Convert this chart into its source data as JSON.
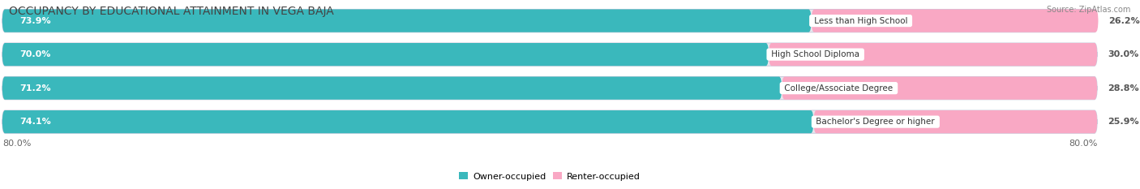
{
  "title": "OCCUPANCY BY EDUCATIONAL ATTAINMENT IN VEGA BAJA",
  "source": "Source: ZipAtlas.com",
  "categories": [
    "Less than High School",
    "High School Diploma",
    "College/Associate Degree",
    "Bachelor's Degree or higher"
  ],
  "owner_pct": [
    73.9,
    70.0,
    71.2,
    74.1
  ],
  "renter_pct": [
    26.2,
    30.0,
    28.8,
    25.9
  ],
  "owner_color": "#3ab8bc",
  "owner_color_light": "#8dd8db",
  "renter_color_dark": "#f06292",
  "renter_color": "#f9a8c4",
  "owner_label": "Owner-occupied",
  "renter_label": "Renter-occupied",
  "axis_left_label": "80.0%",
  "axis_right_label": "80.0%",
  "background_color": "#ffffff",
  "bar_bg_color": "#e8e8ee",
  "title_fontsize": 10,
  "label_fontsize": 8,
  "tick_fontsize": 8,
  "bar_height": 0.68,
  "max_val": 80.0
}
